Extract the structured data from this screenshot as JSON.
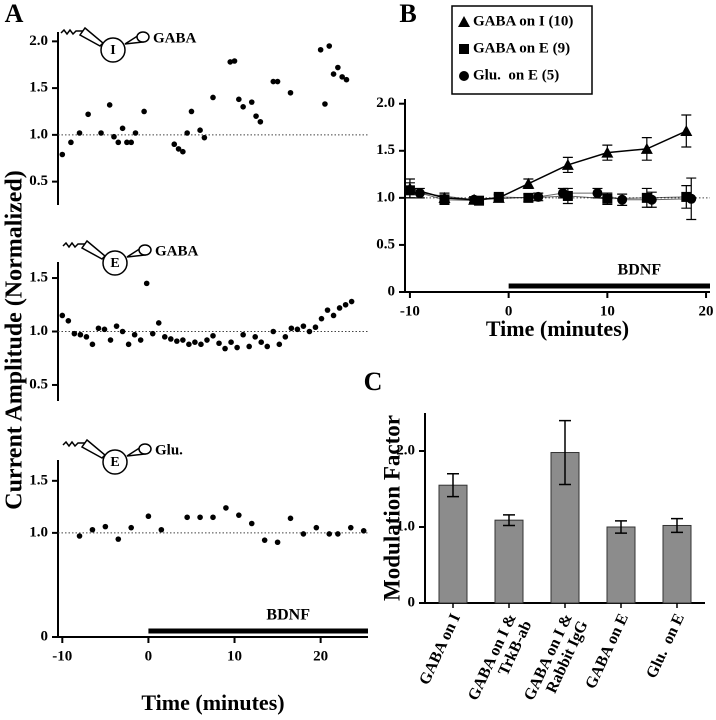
{
  "chart_data": [
    {
      "type": "scatter",
      "panel": "A",
      "ylabel": "Current Amplitude (Normalized)",
      "cell": "I",
      "drug": "GABA",
      "x": [
        -10,
        -9,
        -8,
        -7,
        -5.5,
        -4.5,
        -4,
        -3.5,
        -3,
        -2.5,
        -2,
        -1.5,
        -0.5,
        3,
        3.5,
        4,
        4.5,
        5,
        6,
        6.5,
        7.5,
        9.5,
        10,
        10.5,
        11,
        12,
        12.5,
        13,
        14.5,
        15,
        16.5,
        20,
        20.5,
        21,
        21.5,
        22,
        22.5,
        23
      ],
      "values": [
        0.79,
        0.92,
        1.02,
        1.22,
        1.02,
        1.32,
        0.98,
        0.92,
        1.07,
        0.92,
        0.92,
        1.02,
        1.25,
        0.9,
        0.85,
        0.82,
        1.02,
        1.25,
        1.05,
        0.97,
        1.4,
        1.78,
        1.79,
        1.38,
        1.3,
        1.35,
        1.2,
        1.14,
        1.57,
        1.57,
        1.45,
        1.91,
        1.33,
        1.95,
        1.65,
        1.72,
        1.62,
        1.59
      ],
      "color": "#000000",
      "xlim": [
        -10.5,
        25.5
      ],
      "ylim": [
        0.25,
        2.1
      ],
      "yticks": [
        0.5,
        {
          "value": 1,
          "label": "1.0"
        },
        1.5,
        {
          "value": 2,
          "label": "2.0"
        }
      ],
      "hline": 1
    },
    {
      "type": "scatter",
      "cell": "E",
      "drug": "GABA",
      "x": [
        -10,
        -9.3,
        -8.6,
        -7.9,
        -7.2,
        -6.5,
        -5.8,
        -5.1,
        -4.4,
        -3.7,
        -3,
        -2.3,
        -1.6,
        -0.9,
        -0.2,
        0.5,
        1.2,
        1.9,
        2.6,
        3.3,
        4,
        4.7,
        5.4,
        6.1,
        6.8,
        7.5,
        8.2,
        8.9,
        9.6,
        10.3,
        11,
        11.7,
        12.4,
        13.1,
        13.8,
        14.5,
        15.2,
        15.9,
        16.6,
        17.3,
        18,
        18.7,
        19.4,
        20.1,
        20.8,
        21.5,
        22.2,
        22.9,
        23.6
      ],
      "values": [
        1.15,
        1.1,
        0.98,
        0.97,
        0.95,
        0.88,
        1.03,
        1.02,
        0.92,
        1.05,
        1.0,
        0.88,
        0.97,
        0.92,
        1.45,
        0.98,
        1.08,
        0.95,
        0.93,
        0.91,
        0.92,
        0.88,
        0.9,
        0.88,
        0.92,
        0.96,
        0.89,
        0.84,
        0.9,
        0.85,
        0.97,
        0.86,
        0.95,
        0.9,
        0.86,
        1.0,
        0.88,
        0.95,
        1.03,
        1.02,
        1.05,
        1.0,
        1.04,
        1.12,
        1.2,
        1.15,
        1.22,
        1.25,
        1.28
      ],
      "color": "#000000",
      "xlim": [
        -10.5,
        25.5
      ],
      "ylim": [
        0.35,
        1.65
      ],
      "yticks": [
        0.5,
        {
          "value": 1,
          "label": "1.0"
        },
        1.5
      ],
      "hline": 1
    },
    {
      "type": "scatter",
      "cell": "E",
      "drug": "Glu.",
      "xlabel": "Time (minutes)",
      "x": [
        -8,
        -6.5,
        -5,
        -3.5,
        -2,
        0,
        1.5,
        4.5,
        6,
        7.5,
        9,
        10.5,
        12,
        13.5,
        15,
        16.5,
        18,
        19.5,
        21,
        22,
        23.5,
        25
      ],
      "values": [
        0.97,
        1.03,
        1.06,
        0.94,
        1.05,
        1.16,
        1.03,
        1.15,
        1.15,
        1.15,
        1.24,
        1.17,
        1.09,
        0.93,
        0.91,
        1.14,
        0.99,
        1.05,
        0.99,
        0.99,
        1.05,
        1.02
      ],
      "color": "#000000",
      "xlim": [
        -10.5,
        25.5
      ],
      "ylim": [
        0,
        1.7
      ],
      "xticks": [
        -10,
        0,
        10,
        20
      ],
      "yticks": [
        0,
        {
          "value": 1,
          "label": "1.0"
        },
        1.5
      ],
      "hline": 1,
      "bar_label": "BDNF",
      "bar_x": [
        0,
        25.5
      ]
    },
    {
      "type": "line",
      "panel": "B",
      "xlabel": "Time (minutes)",
      "xlim": [
        -10.5,
        20.4
      ],
      "ylim": [
        0,
        2.05
      ],
      "xticks": [
        -10,
        0,
        10,
        20
      ],
      "yticks": [
        0,
        0.5,
        {
          "value": 1,
          "label": "1.0"
        },
        1.5,
        {
          "value": 2,
          "label": "2.0"
        }
      ],
      "hline": 1,
      "bar_label": "BDNF",
      "bar_x": [
        0,
        20.4
      ],
      "series": [
        {
          "name": "GABA on I (10)",
          "marker": "triangle",
          "color": "#000000",
          "x": [
            -10,
            -6.5,
            -3.5,
            -1,
            2,
            6,
            10,
            14,
            18
          ],
          "values": [
            1.1,
            1.0,
            0.98,
            1.0,
            1.15,
            1.35,
            1.48,
            1.52,
            1.71
          ],
          "errors": [
            0.1,
            0.05,
            0.03,
            0.03,
            0.05,
            0.08,
            0.08,
            0.12,
            0.17
          ]
        },
        {
          "name": "GABA on E (9)",
          "marker": "square",
          "color": "#000000",
          "x": [
            -10,
            -6.5,
            -3,
            -1,
            2,
            6,
            10,
            14,
            18
          ],
          "values": [
            1.08,
            0.98,
            0.97,
            1.01,
            1.0,
            1.02,
            0.99,
            1.0,
            1.01
          ],
          "errors": [
            0.08,
            0.05,
            0.03,
            0.03,
            0.04,
            0.08,
            0.06,
            0.1,
            0.12
          ]
        },
        {
          "name": "Glu.  on E (5)",
          "marker": "circle",
          "color": "#000000",
          "x": [
            -9,
            -3.5,
            3,
            5.5,
            9,
            11.5,
            14.5,
            18.5
          ],
          "values": [
            1.05,
            0.98,
            1.01,
            1.05,
            1.05,
            0.98,
            0.98,
            0.99
          ],
          "errors": [
            0.05,
            0.03,
            0.04,
            0.05,
            0.05,
            0.06,
            0.08,
            0.22
          ]
        }
      ]
    },
    {
      "type": "bar",
      "panel": "C",
      "ylabel": "Modulation Factor",
      "categories": [
        [
          "GABA on I"
        ],
        [
          "GABA on I &",
          "TrkB-ab"
        ],
        [
          "GABA on I &",
          "Rabbit IgG"
        ],
        [
          "GABA on E"
        ],
        [
          "Glu.  on E"
        ]
      ],
      "values": [
        1.55,
        1.09,
        1.98,
        1.0,
        1.02
      ],
      "errors": [
        0.15,
        0.07,
        0.42,
        0.08,
        0.09
      ],
      "color": "#8c8c8c",
      "ylim": [
        0,
        2.5
      ],
      "yticks": [
        0,
        {
          "value": 1,
          "label": "1.0"
        },
        {
          "value": 2,
          "label": "2.0"
        }
      ]
    }
  ]
}
